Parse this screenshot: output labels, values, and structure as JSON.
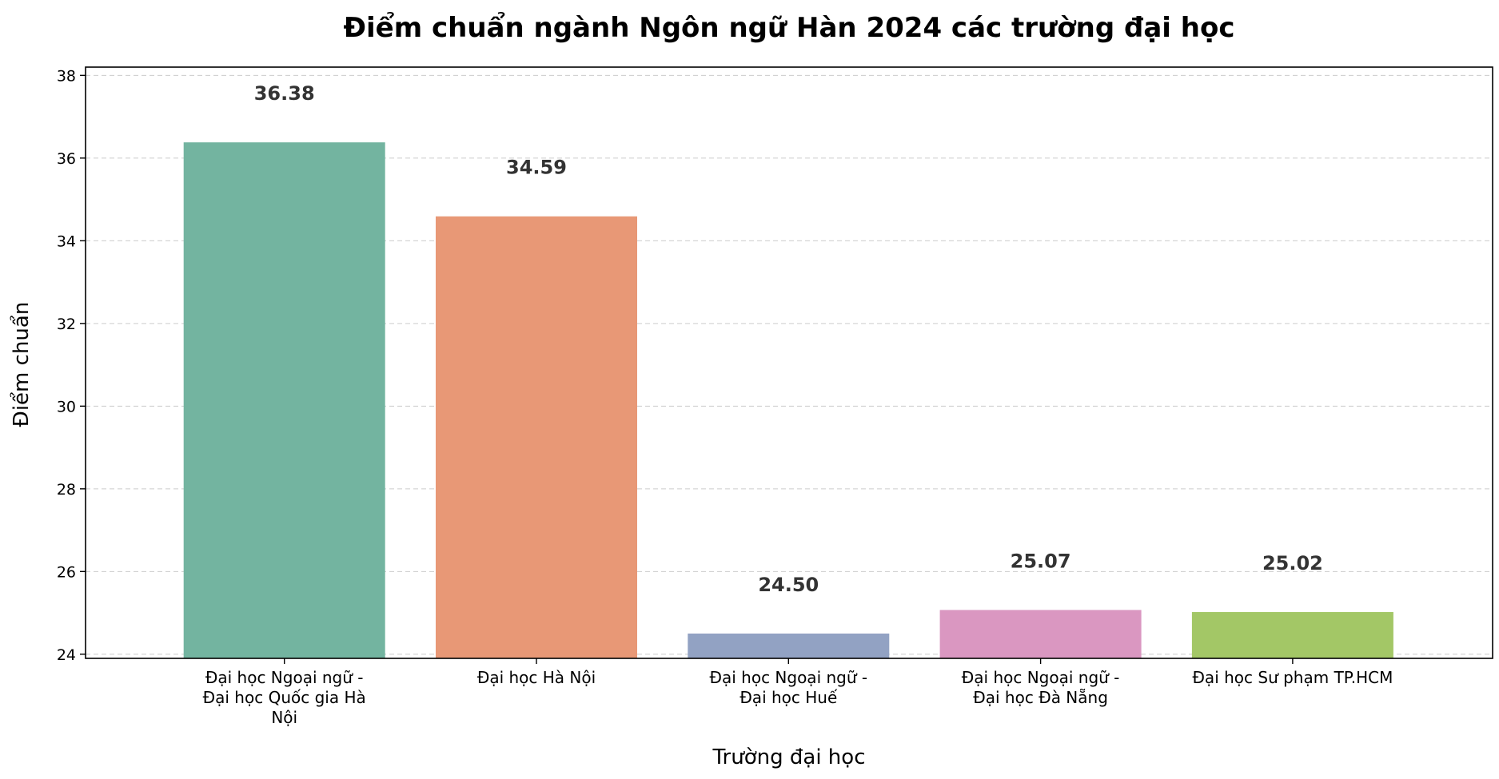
{
  "chart_data": {
    "type": "bar",
    "title": "Điểm chuẩn ngành Ngôn ngữ Hàn 2024 các trường đại học",
    "xlabel": "Trường đại học",
    "ylabel": "Điểm chuẩn",
    "ylim": [
      23.9,
      38.2
    ],
    "yticks": [
      24,
      26,
      28,
      30,
      32,
      34,
      36,
      38
    ],
    "grid": "y dashed",
    "categories": [
      "Đại học Ngoại ngữ - Đại học Quốc gia Hà Nội",
      "Đại học Hà Nội",
      "Đại học Ngoại ngữ - Đại học Huế",
      "Đại học Ngoại ngữ - Đại học Đà Nẵng",
      "Đại học Sư phạm TP.HCM"
    ],
    "category_lines": [
      [
        "Đại học Ngoại ngữ -",
        "Đại học Quốc gia Hà",
        "Nội"
      ],
      [
        "Đại học Hà Nội"
      ],
      [
        "Đại học Ngoại ngữ -",
        "Đại học Huế"
      ],
      [
        "Đại học Ngoại ngữ -",
        "Đại học Đà Nẵng"
      ],
      [
        "Đại học Sư phạm TP.HCM"
      ]
    ],
    "values": [
      36.38,
      34.59,
      24.5,
      25.07,
      25.02
    ],
    "value_labels": [
      "36.38",
      "34.59",
      "24.50",
      "25.07",
      "25.02"
    ],
    "colors": [
      "#73b4a0",
      "#e89876",
      "#92a2c3",
      "#da97c1",
      "#a3c766"
    ]
  }
}
